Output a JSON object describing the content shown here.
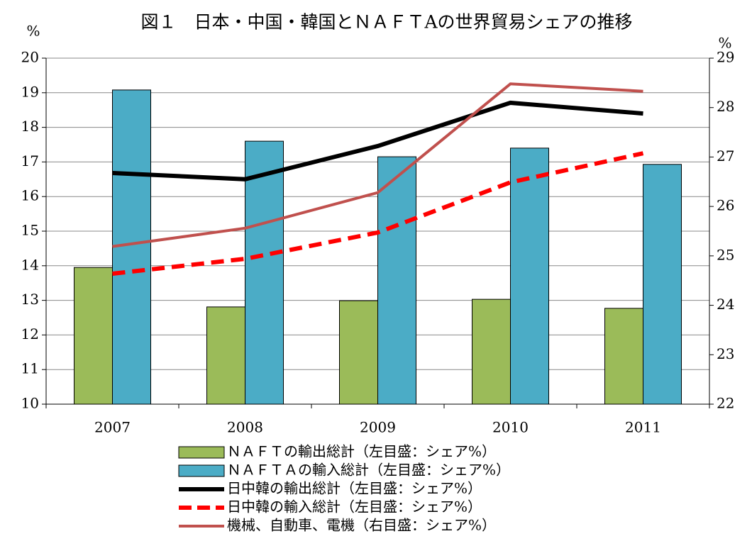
{
  "chart_data": {
    "type": "bar",
    "title": "図１　日本・中国・韓国とＮＡＦＴAの世界貿易シェアの推移",
    "y_label": "%",
    "y2_label": "%",
    "categories": [
      "2007",
      "2008",
      "2009",
      "2010",
      "2011"
    ],
    "series": [
      {
        "name": "ＮＡＦＴの輸出総計（左目盛：シェア%）",
        "type": "bar",
        "color": "#9bbb59",
        "values": [
          13.95,
          12.81,
          12.99,
          13.03,
          12.77
        ]
      },
      {
        "name": "ＮＡＦＴＡの輸入総計（左目盛：シェア%）",
        "type": "bar",
        "color": "#4bacc6",
        "values": [
          19.08,
          17.6,
          17.15,
          17.4,
          16.93
        ]
      },
      {
        "name": "日中韓の輸出総計（左目盛：シェア%）",
        "type": "line",
        "color": "#000000",
        "values": [
          16.68,
          16.5,
          17.46,
          18.71,
          18.4
        ]
      },
      {
        "name": "日中韓の輸入総計（左目盛：シェア%）",
        "type": "line",
        "color": "#ff0000",
        "dashed": true,
        "values": [
          13.77,
          14.2,
          14.96,
          16.41,
          17.25
        ]
      },
      {
        "name": "機械、自動車、電機（右目盛：シェア%）",
        "type": "line",
        "color": "#c0504d",
        "axis": "y2",
        "values": [
          25.19,
          25.56,
          26.28,
          28.48,
          28.33
        ]
      }
    ],
    "ylim": [
      10,
      20
    ],
    "yticks": [
      10,
      11,
      12,
      13,
      14,
      15,
      16,
      17,
      18,
      19,
      20
    ],
    "y2lim": [
      22,
      29
    ],
    "y2ticks": [
      22,
      23,
      24,
      25,
      26,
      27,
      28,
      29
    ],
    "grid": true,
    "legend": "bottom"
  }
}
